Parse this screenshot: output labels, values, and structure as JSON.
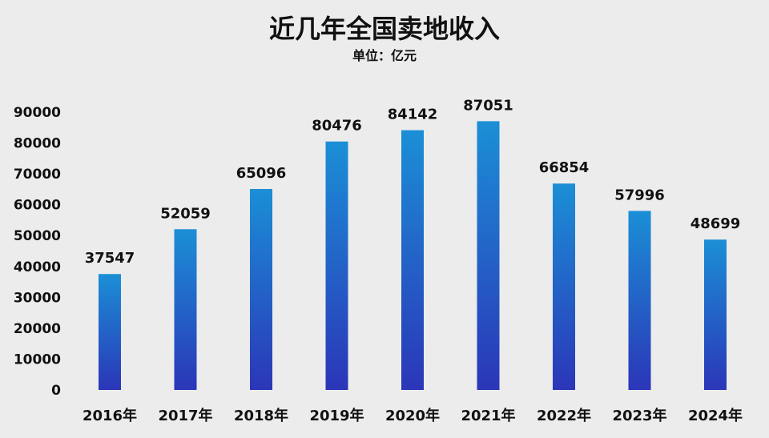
{
  "chart_data": {
    "type": "bar",
    "title": "近几年全国卖地收入",
    "subtitle": "单位：亿元",
    "categories": [
      "2016年",
      "2017年",
      "2018年",
      "2019年",
      "2020年",
      "2021年",
      "2022年",
      "2023年",
      "2024年"
    ],
    "values": [
      37547,
      52059,
      65096,
      80476,
      84142,
      87051,
      66854,
      57996,
      48699
    ],
    "ylim": [
      0,
      90000
    ],
    "yticks": [
      0,
      10000,
      20000,
      30000,
      40000,
      50000,
      60000,
      70000,
      80000,
      90000
    ],
    "xlabel": "",
    "ylabel": "",
    "grid": false,
    "legend": "none",
    "colors": {
      "bar_top": "#1b8fd6",
      "bar_bottom": "#2b36b8",
      "background": "#ececec",
      "text": "#111111"
    }
  }
}
